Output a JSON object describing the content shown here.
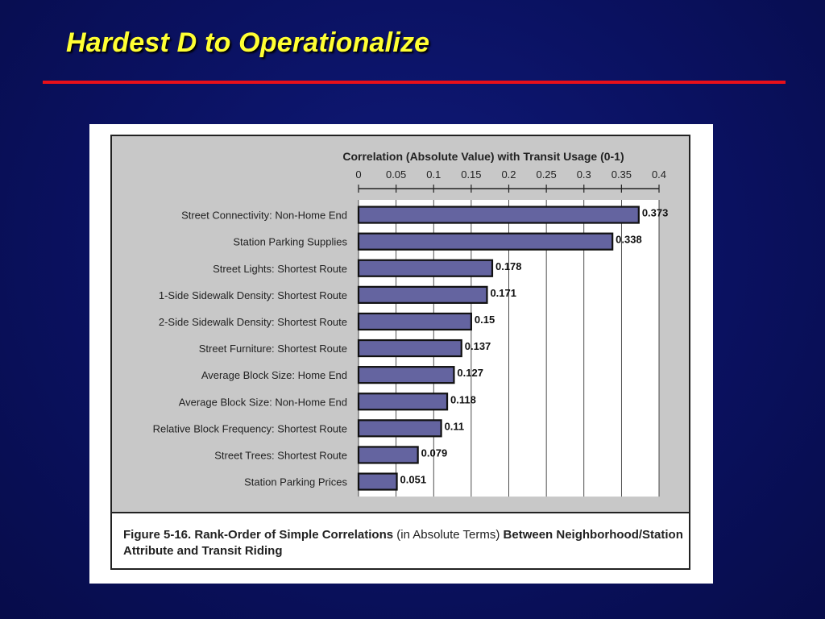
{
  "slide": {
    "title": "Hardest D to Operationalize"
  },
  "colors": {
    "background": "#0a1160",
    "title": "#ffff33",
    "rule": "#e8101a",
    "bar_fill": "#6464a0",
    "plot_background": "#c8c8c8"
  },
  "figure": {
    "caption_part1": "Figure 5-16. Rank-Order of Simple Correlations ",
    "caption_part2": "(in Absolute Terms)",
    "caption_part3": " Between Neighborhood/Station Attribute and Transit Riding"
  },
  "chart_data": {
    "type": "bar",
    "orientation": "horizontal",
    "title": "Correlation (Absolute Value) with Transit Usage (0-1)",
    "xlim": [
      0,
      0.4
    ],
    "ticks": [
      "0",
      "0.05",
      "0.1",
      "0.15",
      "0.2",
      "0.25",
      "0.3",
      "0.35",
      "0.4"
    ],
    "tick_values": [
      0,
      0.05,
      0.1,
      0.15,
      0.2,
      0.25,
      0.3,
      0.35,
      0.4
    ],
    "axis_position": "top",
    "grid": true,
    "categories": [
      "Street Connectivity: Non-Home End",
      "Station Parking Supplies",
      "Street Lights: Shortest Route",
      "1-Side Sidewalk Density: Shortest Route",
      "2-Side Sidewalk Density: Shortest Route",
      "Street Furniture: Shortest Route",
      "Average Block Size: Home End",
      "Average Block Size: Non-Home End",
      "Relative Block Frequency: Shortest Route",
      "Street Trees: Shortest Route",
      "Station Parking Prices"
    ],
    "values": [
      0.373,
      0.338,
      0.178,
      0.171,
      0.15,
      0.137,
      0.127,
      0.118,
      0.11,
      0.079,
      0.051
    ],
    "value_labels": [
      "0.373",
      "0.338",
      "0.178",
      "0.171",
      "0.15",
      "0.137",
      "0.127",
      "0.118",
      "0.11",
      "0.079",
      "0.051"
    ]
  }
}
